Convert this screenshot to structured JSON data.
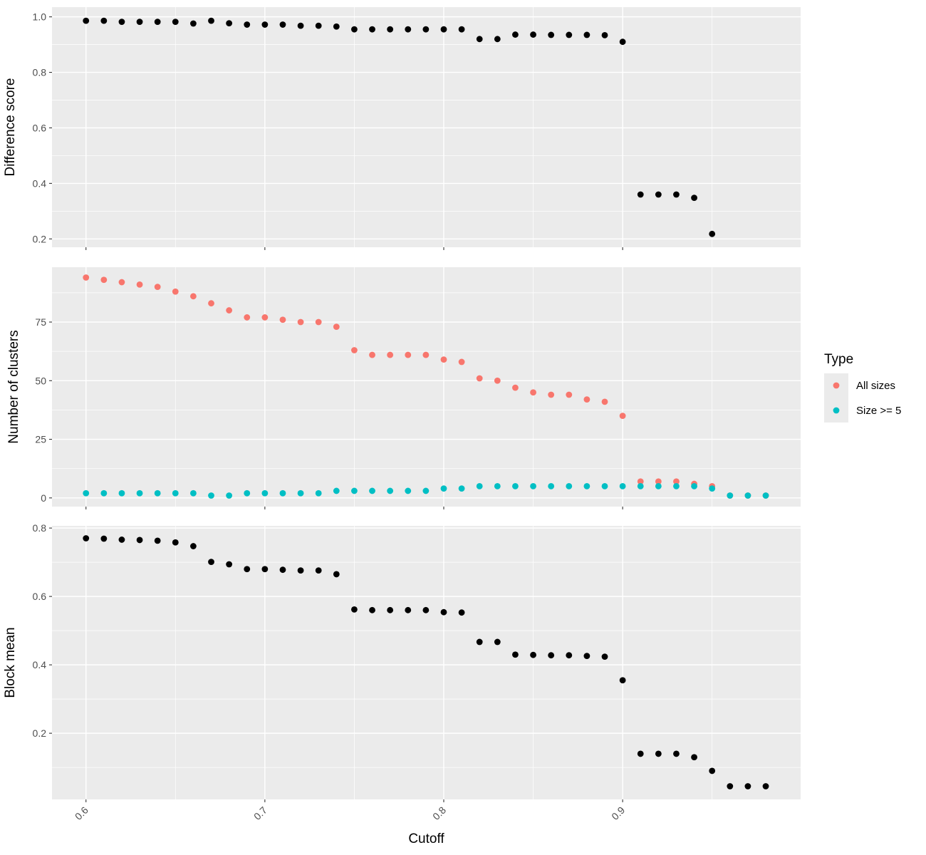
{
  "chart_data": {
    "type": "scatter",
    "xlabel": "Cutoff",
    "x_ticks": [
      "0.6",
      "0.7",
      "0.8",
      "0.9"
    ],
    "x_tick_values": [
      0.6,
      0.7,
      0.8,
      0.9
    ],
    "xlim": [
      0.581,
      0.9995
    ],
    "x": [
      0.6,
      0.61,
      0.62,
      0.63,
      0.64,
      0.65,
      0.66,
      0.67,
      0.68,
      0.69,
      0.7,
      0.71,
      0.72,
      0.73,
      0.74,
      0.75,
      0.76,
      0.77,
      0.78,
      0.79,
      0.8,
      0.81,
      0.82,
      0.83,
      0.84,
      0.85,
      0.86,
      0.87,
      0.88,
      0.89,
      0.9,
      0.91,
      0.92,
      0.93,
      0.94,
      0.95,
      0.96,
      0.97,
      0.98
    ],
    "panels": [
      {
        "ylabel": "Difference score",
        "ylim": [
          0.17,
          1.035
        ],
        "y_ticks": [
          "0.2",
          "0.4",
          "0.6",
          "0.8",
          "1.0"
        ],
        "y_tick_values": [
          0.2,
          0.4,
          0.6,
          0.8,
          1.0
        ],
        "series": [
          {
            "color": "#000000",
            "values": [
              0.986,
              0.986,
              0.982,
              0.982,
              0.982,
              0.982,
              0.976,
              0.986,
              0.977,
              0.972,
              0.972,
              0.972,
              0.968,
              0.968,
              0.965,
              0.955,
              0.955,
              0.955,
              0.955,
              0.955,
              0.955,
              0.955,
              0.92,
              0.92,
              0.936,
              0.936,
              0.935,
              0.935,
              0.935,
              0.934,
              0.91,
              0.36,
              0.36,
              0.36,
              0.348,
              0.218,
              null,
              null,
              null
            ]
          }
        ]
      },
      {
        "ylabel": "Number of clusters",
        "ylim": [
          -3.7,
          98.4
        ],
        "y_ticks": [
          "0",
          "25",
          "50",
          "75"
        ],
        "y_tick_values": [
          0,
          25,
          50,
          75
        ],
        "series": [
          {
            "name": "All sizes",
            "color": "#F8766D",
            "values": [
              94,
              93,
              92,
              91,
              90,
              88,
              86,
              83,
              80,
              77,
              77,
              76,
              75,
              75,
              73,
              63,
              61,
              61,
              61,
              61,
              59,
              58,
              51,
              50,
              47,
              45,
              44,
              44,
              42,
              41,
              35,
              7,
              7,
              7,
              6,
              5,
              1,
              1,
              1
            ]
          },
          {
            "name": "Size >= 5",
            "color": "#00BFC4",
            "values": [
              2,
              2,
              2,
              2,
              2,
              2,
              2,
              1,
              1,
              2,
              2,
              2,
              2,
              2,
              3,
              3,
              3,
              3,
              3,
              3,
              4,
              4,
              5,
              5,
              5,
              5,
              5,
              5,
              5,
              5,
              5,
              5,
              5,
              5,
              5,
              4,
              1,
              1,
              1
            ]
          }
        ]
      },
      {
        "ylabel": "Block mean",
        "ylim": [
          0.0065,
          0.8065
        ],
        "y_ticks": [
          "0.2",
          "0.4",
          "0.6",
          "0.8"
        ],
        "y_tick_values": [
          0.2,
          0.4,
          0.6,
          0.8
        ],
        "series": [
          {
            "color": "#000000",
            "values": [
              0.77,
              0.769,
              0.766,
              0.765,
              0.763,
              0.758,
              0.747,
              0.701,
              0.694,
              0.68,
              0.68,
              0.678,
              0.676,
              0.676,
              0.665,
              0.562,
              0.56,
              0.56,
              0.56,
              0.56,
              0.554,
              0.553,
              0.467,
              0.467,
              0.43,
              0.429,
              0.428,
              0.428,
              0.426,
              0.424,
              0.355,
              0.14,
              0.14,
              0.14,
              0.13,
              0.09,
              0.045,
              0.045,
              0.045
            ]
          }
        ]
      }
    ],
    "legend": {
      "title": "Type",
      "position": "right",
      "items": [
        {
          "label": "All sizes",
          "color": "#F8766D"
        },
        {
          "label": "Size >= 5",
          "color": "#00BFC4"
        }
      ]
    },
    "grid": true,
    "panel_background": "#EBEBEB",
    "grid_color": "#FFFFFF"
  }
}
